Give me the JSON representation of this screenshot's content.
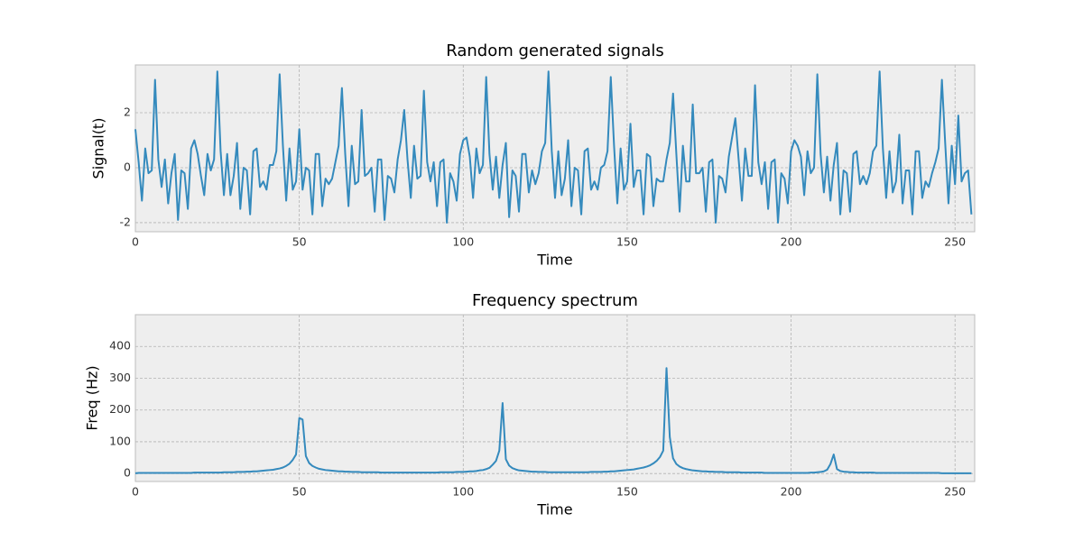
{
  "chart_data": [
    {
      "type": "line",
      "title": "Random generated signals",
      "xlabel": "Time",
      "ylabel": "Signal(t)",
      "color": "#348abd",
      "grid": true,
      "xlim": [
        0,
        256
      ],
      "ylim": [
        -2.33,
        3.74
      ],
      "xticks": [
        0,
        50,
        100,
        150,
        200,
        250
      ],
      "yticks": [
        -2,
        0,
        2
      ],
      "x": [
        0,
        1,
        2,
        3,
        4,
        5,
        6,
        7,
        8,
        9,
        10,
        11,
        12,
        13,
        14,
        15,
        16,
        17,
        18,
        19,
        20,
        21,
        22,
        23,
        24,
        25,
        26,
        27,
        28,
        29,
        30,
        31,
        32,
        33,
        34,
        35,
        36,
        37,
        38,
        39,
        40,
        41,
        42,
        43,
        44,
        45,
        46,
        47,
        48,
        49,
        50,
        51,
        52,
        53,
        54,
        55,
        56,
        57,
        58,
        59,
        60,
        61,
        62,
        63,
        64,
        65,
        66,
        67,
        68,
        69,
        70,
        71,
        72,
        73,
        74,
        75,
        76,
        77,
        78,
        79,
        80,
        81,
        82,
        83,
        84,
        85,
        86,
        87,
        88,
        89,
        90,
        91,
        92,
        93,
        94,
        95,
        96,
        97,
        98,
        99,
        100,
        101,
        102,
        103,
        104,
        105,
        106,
        107,
        108,
        109,
        110,
        111,
        112,
        113,
        114,
        115,
        116,
        117,
        118,
        119,
        120,
        121,
        122,
        123,
        124,
        125,
        126,
        127,
        128,
        129,
        130,
        131,
        132,
        133,
        134,
        135,
        136,
        137,
        138,
        139,
        140,
        141,
        142,
        143,
        144,
        145,
        146,
        147,
        148,
        149,
        150,
        151,
        152,
        153,
        154,
        155,
        156,
        157,
        158,
        159,
        160,
        161,
        162,
        163,
        164,
        165,
        166,
        167,
        168,
        169,
        170,
        171,
        172,
        173,
        174,
        175,
        176,
        177,
        178,
        179,
        180,
        181,
        182,
        183,
        184,
        185,
        186,
        187,
        188,
        189,
        190,
        191,
        192,
        193,
        194,
        195,
        196,
        197,
        198,
        199,
        200,
        201,
        202,
        203,
        204,
        205,
        206,
        207,
        208,
        209,
        210,
        211,
        212,
        213,
        214,
        215,
        216,
        217,
        218,
        219,
        220,
        221,
        222,
        223,
        224,
        225,
        226,
        227,
        228,
        229,
        230,
        231,
        232,
        233,
        234,
        235,
        236,
        237,
        238,
        239,
        240,
        241,
        242,
        243,
        244,
        245,
        246,
        247,
        248,
        249,
        250,
        251,
        252,
        253,
        254,
        255
      ],
      "values": [
        1.4,
        0.2,
        -1.2,
        0.7,
        -0.2,
        -0.1,
        3.2,
        0.3,
        -0.7,
        0.3,
        -1.3,
        -0.2,
        0.5,
        -1.9,
        -0.1,
        -0.2,
        -1.5,
        0.7,
        1.0,
        0.5,
        -0.3,
        -1.0,
        0.5,
        -0.1,
        0.3,
        3.5,
        0.6,
        -1.0,
        0.5,
        -1.0,
        -0.3,
        0.9,
        -1.5,
        0.0,
        -0.1,
        -1.7,
        0.6,
        0.7,
        -0.7,
        -0.5,
        -0.8,
        0.1,
        0.1,
        0.6,
        3.4,
        0.8,
        -1.2,
        0.7,
        -0.8,
        -0.5,
        1.4,
        -0.8,
        0.0,
        -0.1,
        -1.7,
        0.5,
        0.5,
        -1.4,
        -0.4,
        -0.6,
        -0.4,
        0.2,
        0.8,
        2.9,
        0.5,
        -1.4,
        0.8,
        -0.6,
        -0.5,
        2.1,
        -0.3,
        -0.2,
        0.0,
        -1.6,
        0.3,
        0.3,
        -1.9,
        -0.3,
        -0.4,
        -0.9,
        0.3,
        1.0,
        2.1,
        0.3,
        -1.1,
        0.8,
        -0.4,
        -0.3,
        2.8,
        0.2,
        -0.5,
        0.2,
        -1.4,
        0.2,
        0.3,
        -2.0,
        -0.2,
        -0.5,
        -1.2,
        0.5,
        1.0,
        1.1,
        0.4,
        -1.1,
        0.7,
        -0.2,
        0.1,
        3.3,
        0.5,
        -0.8,
        0.4,
        -1.1,
        0.1,
        0.9,
        -1.8,
        -0.1,
        -0.3,
        -1.6,
        0.5,
        0.5,
        -0.9,
        -0.1,
        -0.6,
        -0.2,
        0.6,
        0.9,
        3.5,
        0.6,
        -1.1,
        0.6,
        -1.0,
        -0.4,
        1.0,
        -1.4,
        0.0,
        -0.1,
        -1.7,
        0.6,
        0.7,
        -0.8,
        -0.5,
        -0.8,
        0.0,
        0.1,
        0.6,
        3.3,
        0.8,
        -1.3,
        0.7,
        -0.8,
        -0.5,
        1.6,
        -0.7,
        -0.1,
        -0.1,
        -1.7,
        0.5,
        0.4,
        -1.4,
        -0.4,
        -0.5,
        -0.5,
        0.3,
        0.9,
        2.7,
        0.5,
        -1.6,
        0.8,
        -0.5,
        -0.5,
        2.3,
        -0.2,
        -0.2,
        0.0,
        -1.6,
        0.2,
        0.3,
        -2.0,
        -0.3,
        -0.4,
        -0.9,
        0.4,
        1.1,
        1.8,
        0.3,
        -1.2,
        0.7,
        -0.3,
        -0.3,
        3.0,
        0.2,
        -0.6,
        0.2,
        -1.5,
        0.2,
        0.3,
        -2.0,
        -0.2,
        -0.4,
        -1.3,
        0.6,
        1.0,
        0.8,
        0.4,
        -1.0,
        0.6,
        -0.2,
        0.0,
        3.4,
        0.5,
        -0.9,
        0.4,
        -1.2,
        0.1,
        0.9,
        -1.7,
        -0.1,
        -0.2,
        -1.6,
        0.5,
        0.6,
        -0.6,
        -0.3,
        -0.6,
        -0.2,
        0.6,
        0.8,
        3.5,
        0.7,
        -1.1,
        0.6,
        -0.9,
        -0.5,
        1.2,
        -1.3,
        -0.1,
        -0.1,
        -1.7,
        0.6,
        0.6,
        -1.1,
        -0.5,
        -0.7,
        -0.2,
        0.2,
        0.7,
        3.2,
        0.9,
        -1.3,
        0.8,
        -0.6,
        1.9,
        -0.5,
        -0.2,
        -0.1,
        -1.7
      ]
    },
    {
      "type": "line",
      "title": "Frequency spectrum",
      "xlabel": "Time",
      "ylabel": "Freq (Hz)",
      "color": "#348abd",
      "grid": true,
      "xlim": [
        0,
        256
      ],
      "ylim": [
        -25,
        500
      ],
      "xticks": [
        0,
        50,
        100,
        150,
        200,
        250
      ],
      "yticks": [
        0,
        100,
        200,
        300,
        400
      ],
      "x": [
        0,
        1,
        2,
        3,
        4,
        5,
        6,
        7,
        8,
        9,
        10,
        11,
        12,
        13,
        14,
        15,
        16,
        17,
        18,
        19,
        20,
        21,
        22,
        23,
        24,
        25,
        26,
        27,
        28,
        29,
        30,
        31,
        32,
        33,
        34,
        35,
        36,
        37,
        38,
        39,
        40,
        41,
        42,
        43,
        44,
        45,
        46,
        47,
        48,
        49,
        50,
        51,
        52,
        53,
        54,
        55,
        56,
        57,
        58,
        59,
        60,
        61,
        62,
        63,
        64,
        65,
        66,
        67,
        68,
        69,
        70,
        71,
        72,
        73,
        74,
        75,
        76,
        77,
        78,
        79,
        80,
        81,
        82,
        83,
        84,
        85,
        86,
        87,
        88,
        89,
        90,
        91,
        92,
        93,
        94,
        95,
        96,
        97,
        98,
        99,
        100,
        101,
        102,
        103,
        104,
        105,
        106,
        107,
        108,
        109,
        110,
        111,
        112,
        113,
        114,
        115,
        116,
        117,
        118,
        119,
        120,
        121,
        122,
        123,
        124,
        125,
        126,
        127,
        128,
        129,
        130,
        131,
        132,
        133,
        134,
        135,
        136,
        137,
        138,
        139,
        140,
        141,
        142,
        143,
        144,
        145,
        146,
        147,
        148,
        149,
        150,
        151,
        152,
        153,
        154,
        155,
        156,
        157,
        158,
        159,
        160,
        161,
        162,
        163,
        164,
        165,
        166,
        167,
        168,
        169,
        170,
        171,
        172,
        173,
        174,
        175,
        176,
        177,
        178,
        179,
        180,
        181,
        182,
        183,
        184,
        185,
        186,
        187,
        188,
        189,
        190,
        191,
        192,
        193,
        194,
        195,
        196,
        197,
        198,
        199,
        200,
        201,
        202,
        203,
        204,
        205,
        206,
        207,
        208,
        209,
        210,
        211,
        212,
        213,
        214,
        215,
        216,
        217,
        218,
        219,
        220,
        221,
        222,
        223,
        224,
        225,
        226,
        227,
        228,
        229,
        230,
        231,
        232,
        233,
        234,
        235,
        236,
        237,
        238,
        239,
        240,
        241,
        242,
        243,
        244,
        245,
        246,
        247,
        248,
        249,
        250,
        251,
        252,
        253,
        254,
        255
      ],
      "values": [
        1,
        2,
        2,
        2,
        2,
        2,
        2,
        2,
        2,
        2,
        2,
        2,
        2,
        2,
        2,
        2,
        2,
        2,
        3,
        3,
        3,
        3,
        3,
        3,
        3,
        3,
        3,
        4,
        4,
        4,
        4,
        5,
        5,
        5,
        6,
        6,
        7,
        7,
        8,
        9,
        10,
        11,
        12,
        14,
        16,
        19,
        24,
        31,
        43,
        60,
        175,
        170,
        55,
        33,
        24,
        19,
        15,
        13,
        11,
        10,
        9,
        8,
        7,
        7,
        6,
        6,
        5,
        5,
        5,
        4,
        4,
        4,
        4,
        4,
        4,
        3,
        3,
        3,
        3,
        3,
        3,
        3,
        3,
        3,
        3,
        3,
        3,
        3,
        3,
        3,
        3,
        3,
        3,
        4,
        4,
        4,
        4,
        4,
        5,
        5,
        5,
        6,
        7,
        7,
        8,
        10,
        11,
        14,
        18,
        28,
        40,
        72,
        222,
        45,
        25,
        17,
        13,
        10,
        9,
        8,
        7,
        6,
        6,
        5,
        5,
        5,
        4,
        4,
        4,
        4,
        4,
        4,
        4,
        4,
        4,
        4,
        4,
        4,
        4,
        5,
        5,
        5,
        5,
        6,
        6,
        7,
        7,
        8,
        9,
        10,
        11,
        12,
        13,
        15,
        17,
        19,
        22,
        26,
        32,
        40,
        52,
        72,
        332,
        115,
        48,
        30,
        22,
        17,
        14,
        12,
        10,
        9,
        8,
        7,
        7,
        6,
        6,
        5,
        5,
        5,
        4,
        4,
        4,
        4,
        4,
        3,
        3,
        3,
        3,
        3,
        3,
        3,
        2,
        2,
        2,
        2,
        2,
        2,
        2,
        2,
        2,
        2,
        2,
        2,
        2,
        2,
        3,
        3,
        4,
        5,
        7,
        12,
        30,
        60,
        14,
        8,
        6,
        5,
        4,
        4,
        3,
        3,
        3,
        3,
        3,
        3,
        2,
        2,
        2,
        2,
        2,
        2,
        2,
        2,
        2,
        2,
        2,
        2,
        2,
        2,
        2,
        2,
        2,
        2,
        2,
        2,
        1,
        1,
        1,
        1,
        1,
        1,
        1,
        1,
        1,
        1
      ]
    }
  ]
}
